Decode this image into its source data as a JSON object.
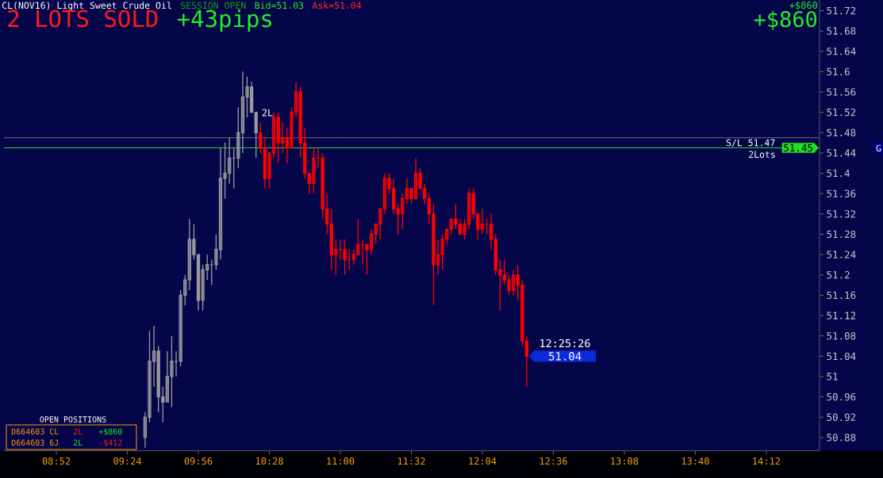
{
  "chart_data": {
    "type": "candlestick",
    "title": "CL(NOV16) Light Sweet Crude Oil",
    "x": [
      9.5333,
      9.5667,
      9.6,
      9.6333,
      9.6667,
      9.7,
      9.7333,
      9.7667,
      9.8,
      9.8333,
      9.8667,
      9.9,
      9.9333,
      9.9667,
      10,
      10.0333,
      10.0667,
      10.1,
      10.1333,
      10.1667,
      10.2,
      10.2333,
      10.2667,
      10.3,
      10.3333,
      10.3667,
      10.4,
      10.4333,
      10.4667,
      10.5,
      10.5333,
      10.5667,
      10.6,
      10.6333,
      10.6667,
      10.7,
      10.7333,
      10.7667,
      10.8,
      10.8333,
      10.8667,
      10.9,
      10.9333,
      10.9667,
      11,
      11.0333,
      11.0667,
      11.1,
      11.1333,
      11.1667,
      11.2,
      11.2333,
      11.2667,
      11.3,
      11.3333,
      11.3667,
      11.4,
      11.4333,
      11.4667,
      11.5,
      11.5333,
      11.5667,
      11.6,
      11.6333,
      11.6667,
      11.7,
      11.7333,
      11.7667,
      11.8,
      11.8333,
      11.8667,
      11.9,
      11.9333,
      11.9667,
      12,
      12.0333,
      12.0667,
      12.1,
      12.1333,
      12.1667,
      12.2,
      12.2333,
      12.2667,
      12.3,
      12.3333,
      12.3667,
      12.4
    ],
    "ohlc": [
      [
        50.88,
        50.93,
        50.86,
        50.92
      ],
      [
        50.92,
        51.09,
        50.91,
        51.03
      ],
      [
        51.03,
        51.1,
        50.98,
        51.05
      ],
      [
        51.05,
        51.06,
        50.93,
        50.96
      ],
      [
        50.96,
        50.98,
        50.91,
        50.95
      ],
      [
        50.95,
        51.05,
        50.95,
        51.0
      ],
      [
        51.0,
        51.08,
        50.94,
        51.03
      ],
      [
        51.03,
        51.05,
        51.0,
        51.03
      ],
      [
        51.03,
        51.17,
        51.02,
        51.16
      ],
      [
        51.16,
        51.2,
        51.14,
        51.19
      ],
      [
        51.19,
        51.31,
        51.17,
        51.27
      ],
      [
        51.27,
        51.3,
        51.23,
        51.24
      ],
      [
        51.24,
        51.24,
        51.13,
        51.15
      ],
      [
        51.15,
        51.22,
        51.13,
        51.21
      ],
      [
        51.21,
        51.24,
        51.19,
        51.22
      ],
      [
        51.22,
        51.23,
        51.18,
        51.22
      ],
      [
        51.22,
        51.28,
        51.21,
        51.25
      ],
      [
        51.25,
        51.45,
        51.23,
        51.39
      ],
      [
        51.39,
        51.46,
        51.35,
        51.4
      ],
      [
        51.4,
        51.47,
        51.38,
        51.43
      ],
      [
        51.43,
        51.45,
        51.37,
        51.43
      ],
      [
        51.43,
        51.53,
        51.41,
        51.48
      ],
      [
        51.48,
        51.6,
        51.44,
        51.55
      ],
      [
        51.55,
        51.59,
        51.51,
        51.57
      ],
      [
        51.57,
        51.58,
        51.52,
        51.52
      ],
      [
        51.52,
        51.52,
        51.43,
        51.48
      ],
      [
        51.48,
        51.5,
        51.44,
        51.45
      ],
      [
        51.45,
        51.47,
        51.37,
        51.39
      ],
      [
        51.39,
        51.44,
        51.37,
        51.44
      ],
      [
        51.44,
        51.52,
        51.43,
        51.51
      ],
      [
        51.51,
        51.52,
        51.42,
        51.46
      ],
      [
        51.46,
        51.5,
        51.44,
        51.47
      ],
      [
        51.47,
        51.49,
        51.42,
        51.45
      ],
      [
        51.45,
        51.53,
        51.45,
        51.52
      ],
      [
        51.52,
        51.58,
        51.51,
        51.56
      ],
      [
        51.56,
        51.57,
        51.43,
        51.46
      ],
      [
        51.46,
        51.49,
        51.39,
        51.4
      ],
      [
        51.4,
        51.4,
        51.36,
        51.38
      ],
      [
        51.38,
        51.45,
        51.36,
        51.43
      ],
      [
        51.43,
        51.45,
        51.41,
        51.43
      ],
      [
        51.43,
        51.44,
        51.31,
        51.33
      ],
      [
        51.33,
        51.36,
        51.28,
        51.3
      ],
      [
        51.3,
        51.33,
        51.21,
        51.24
      ],
      [
        51.24,
        51.27,
        51.2,
        51.25
      ],
      [
        51.25,
        51.27,
        51.23,
        51.25
      ],
      [
        51.25,
        51.27,
        51.2,
        51.23
      ],
      [
        51.23,
        51.25,
        51.21,
        51.23
      ],
      [
        51.23,
        51.25,
        51.22,
        51.24
      ],
      [
        51.24,
        51.31,
        51.24,
        51.26
      ],
      [
        51.26,
        51.27,
        51.22,
        51.26
      ],
      [
        51.26,
        51.26,
        51.2,
        51.25
      ],
      [
        51.25,
        51.29,
        51.24,
        51.28
      ],
      [
        51.28,
        51.3,
        51.26,
        51.3
      ],
      [
        51.3,
        51.33,
        51.27,
        51.33
      ],
      [
        51.33,
        51.4,
        51.32,
        51.39
      ],
      [
        51.39,
        51.4,
        51.36,
        51.37
      ],
      [
        51.37,
        51.39,
        51.32,
        51.33
      ],
      [
        51.33,
        51.34,
        51.28,
        51.32
      ],
      [
        51.32,
        51.36,
        51.29,
        51.35
      ],
      [
        51.35,
        51.39,
        51.34,
        51.37
      ],
      [
        51.37,
        51.37,
        51.34,
        51.35
      ],
      [
        51.35,
        51.43,
        51.35,
        51.4
      ],
      [
        51.4,
        51.41,
        51.37,
        51.37
      ],
      [
        51.37,
        51.38,
        51.34,
        51.35
      ],
      [
        51.35,
        51.36,
        51.3,
        51.32
      ],
      [
        51.32,
        51.34,
        51.14,
        51.22
      ],
      [
        51.22,
        51.27,
        51.2,
        51.24
      ],
      [
        51.24,
        51.28,
        51.21,
        51.27
      ],
      [
        51.27,
        51.29,
        51.26,
        51.29
      ],
      [
        51.29,
        51.31,
        51.28,
        51.31
      ],
      [
        51.31,
        51.34,
        51.29,
        51.3
      ],
      [
        51.3,
        51.31,
        51.28,
        51.28
      ],
      [
        51.28,
        51.31,
        51.27,
        51.3
      ],
      [
        51.3,
        51.37,
        51.29,
        51.36
      ],
      [
        51.36,
        51.37,
        51.31,
        51.32
      ],
      [
        51.32,
        51.32,
        51.27,
        51.29
      ],
      [
        51.29,
        51.33,
        51.28,
        51.3
      ],
      [
        51.3,
        51.31,
        51.28,
        51.3
      ],
      [
        51.3,
        51.32,
        51.25,
        51.27
      ],
      [
        51.27,
        51.28,
        51.2,
        51.21
      ],
      [
        51.21,
        51.23,
        51.13,
        51.2
      ],
      [
        51.2,
        51.23,
        51.18,
        51.19
      ],
      [
        51.19,
        51.2,
        51.16,
        51.17
      ],
      [
        51.17,
        51.21,
        51.16,
        51.2
      ],
      [
        51.2,
        51.22,
        51.15,
        51.18
      ],
      [
        51.18,
        51.19,
        51.06,
        51.07
      ],
      [
        51.07,
        51.08,
        50.98,
        51.04
      ]
    ],
    "colors": [
      "#9a9a9a",
      "#9a9a9a",
      "#9a9a9a",
      "#9a9a9a",
      "#9a9a9a",
      "#9a9a9a",
      "#9a9a9a",
      "#9a9a9a",
      "#9a9a9a",
      "#9a9a9a",
      "#9a9a9a",
      "#9a9a9a",
      "#9a9a9a",
      "#9a9a9a",
      "#9a9a9a",
      "#9a9a9a",
      "#9a9a9a",
      "#9a9a9a",
      "#9a9a9a",
      "#9a9a9a",
      "#9a9a9a",
      "#9a9a9a",
      "#9a9a9a",
      "#9a9a9a",
      "#9a9a9a",
      "#9a9a9a",
      "#ff0000",
      "#ff0000",
      "#ff0000",
      "#ff0000",
      "#ff0000",
      "#ff0000",
      "#ff0000",
      "#ff0000",
      "#ff0000",
      "#ff0000",
      "#ff0000",
      "#ff0000",
      "#ff0000",
      "#ff0000",
      "#ff0000",
      "#ff0000",
      "#ff0000",
      "#ff0000",
      "#ff0000",
      "#ff0000",
      "#ff0000",
      "#ff0000",
      "#ff0000",
      "#ff0000",
      "#ff0000",
      "#ff0000",
      "#ff0000",
      "#ff0000",
      "#ff0000",
      "#ff0000",
      "#ff0000",
      "#ff0000",
      "#ff0000",
      "#ff0000",
      "#ff0000",
      "#ff0000",
      "#ff0000",
      "#ff0000",
      "#ff0000",
      "#ff0000",
      "#ff0000",
      "#ff0000",
      "#ff0000",
      "#ff0000",
      "#ff0000",
      "#ff0000",
      "#ff0000",
      "#ff0000",
      "#ff0000",
      "#ff0000",
      "#ff0000",
      "#ff0000",
      "#ff0000",
      "#ff0000",
      "#ff0000",
      "#ff0000",
      "#ff0000",
      "#ff0000",
      "#ff0000",
      "#ff0000",
      "#ff0000"
    ],
    "xlim": [
      8.473,
      14.6
    ],
    "ylim": [
      50.854,
      51.741
    ],
    "xticks": [
      {
        "value": 8.8667,
        "label": "08:52"
      },
      {
        "value": 9.4,
        "label": "09:24"
      },
      {
        "value": 9.9333,
        "label": "09:56"
      },
      {
        "value": 10.4667,
        "label": "10:28"
      },
      {
        "value": 11,
        "label": "11:00"
      },
      {
        "value": 11.5333,
        "label": "11:32"
      },
      {
        "value": 12.0667,
        "label": "12:04"
      },
      {
        "value": 12.6,
        "label": "12:36"
      },
      {
        "value": 13.1333,
        "label": "13:08"
      },
      {
        "value": 13.6667,
        "label": "13:40"
      },
      {
        "value": 14.2,
        "label": "14:12"
      }
    ],
    "yticks": [
      50.88,
      50.92,
      50.96,
      51,
      51.04,
      51.08,
      51.12,
      51.16,
      51.2,
      51.24,
      51.28,
      51.32,
      51.36,
      51.4,
      51.44,
      51.48,
      51.52,
      51.56,
      51.6,
      51.64,
      51.68,
      51.72
    ],
    "ref_lines": [
      {
        "axis": "y",
        "value": 51.47,
        "label": "S/L 51.47",
        "color": "#707060"
      },
      {
        "axis": "y",
        "value": 51.45,
        "label": "51.45",
        "color": "#22dd22"
      }
    ],
    "annotations": [
      "SESSION OPEN",
      "Bid=51.03",
      "Ask=51.04",
      "2 LOTS SOLD",
      "+43pips",
      "+$860",
      "+$860",
      "2Lots",
      "G",
      "2L",
      "12:25:26",
      {
        "text": "51.04",
        "x": 12.4,
        "y": 51.04
      },
      "OPEN POSITIONS",
      "D664603",
      "CL",
      "2L",
      "+$860",
      "D664603",
      "6J",
      "2L",
      "-$412"
    ]
  }
}
